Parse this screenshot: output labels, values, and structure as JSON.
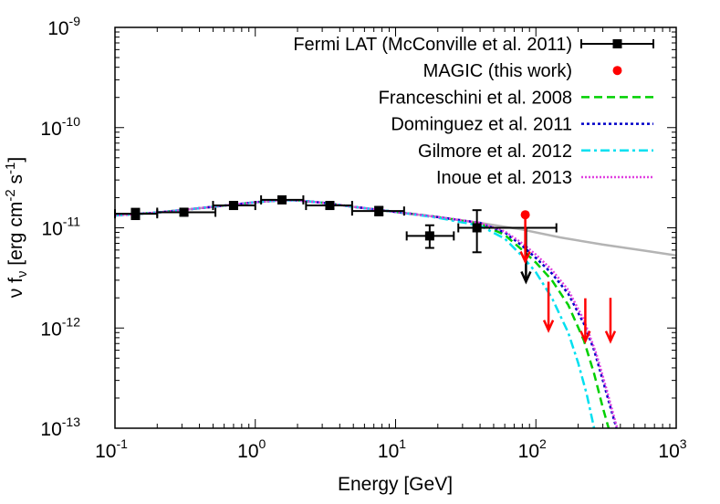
{
  "chart_data": {
    "type": "scatter",
    "xscale": "log",
    "yscale": "log",
    "xlim": [
      0.1,
      1000
    ],
    "ylim": [
      1e-13,
      1e-09
    ],
    "xlabel": "Energy [GeV]",
    "ylabel": {
      "base": "ν f",
      "sub": "ν",
      "unit_open": " [erg cm",
      "sup1": "-2",
      "unit_mid": " s",
      "sup2": "-1",
      "unit_close": "]"
    },
    "xticks": [
      {
        "base": "10",
        "exp": "-1",
        "value": 0.1
      },
      {
        "base": "10",
        "exp": "0",
        "value": 1
      },
      {
        "base": "10",
        "exp": "1",
        "value": 10
      },
      {
        "base": "10",
        "exp": "2",
        "value": 100
      },
      {
        "base": "10",
        "exp": "3",
        "value": 1000
      }
    ],
    "yticks": [
      {
        "base": "10",
        "exp": "-9",
        "value": 1e-09
      },
      {
        "base": "10",
        "exp": "-10",
        "value": 1e-10
      },
      {
        "base": "10",
        "exp": "-11",
        "value": 1e-11
      },
      {
        "base": "10",
        "exp": "-12",
        "value": 1e-12
      },
      {
        "base": "10",
        "exp": "-13",
        "value": 1e-13
      }
    ],
    "legend_position": "top-right",
    "series": [
      {
        "name": "Fermi LAT (McConville et al. 2011)",
        "kind": "points",
        "color": "#000000",
        "marker": "square",
        "points": [
          {
            "x": 0.14,
            "y": 1.38e-11,
            "xlo": 0.1,
            "xhi": 0.2,
            "ylo": 1.22e-11,
            "yhi": 1.55e-11
          },
          {
            "x": 0.31,
            "y": 1.43e-11,
            "xlo": 0.2,
            "xhi": 0.52,
            "ylo": 1.33e-11,
            "yhi": 1.55e-11
          },
          {
            "x": 0.7,
            "y": 1.67e-11,
            "xlo": 0.5,
            "xhi": 1.0,
            "ylo": 1.55e-11,
            "yhi": 1.8e-11
          },
          {
            "x": 1.55,
            "y": 1.9e-11,
            "xlo": 1.1,
            "xhi": 2.2,
            "ylo": 1.78e-11,
            "yhi": 2.05e-11
          },
          {
            "x": 3.4,
            "y": 1.67e-11,
            "xlo": 2.3,
            "xhi": 4.9,
            "ylo": 1.55e-11,
            "yhi": 1.8e-11
          },
          {
            "x": 7.6,
            "y": 1.47e-11,
            "xlo": 4.9,
            "xhi": 11.5,
            "ylo": 1.33e-11,
            "yhi": 1.62e-11
          },
          {
            "x": 17.5,
            "y": 8.3e-12,
            "xlo": 12,
            "xhi": 26,
            "ylo": 6.3e-12,
            "yhi": 1.06e-11
          },
          {
            "x": 38,
            "y": 1e-11,
            "xlo": 28,
            "xhi": 140,
            "ylo": 5.7e-12,
            "yhi": 1.5e-11
          }
        ],
        "upper_limits": [
          {
            "x": 85,
            "y": 1.02e-11,
            "y_arrow_end": 2.9e-12
          }
        ]
      },
      {
        "name": "MAGIC (this work)",
        "kind": "points",
        "color": "#ff0000",
        "marker": "circle",
        "points": [
          {
            "x": 84,
            "y": 1.35e-11
          }
        ],
        "upper_limits": [
          {
            "x": 84,
            "y": 1.35e-11,
            "y_arrow_end": 4.6e-12
          },
          {
            "x": 123,
            "y": 2.9e-12,
            "y_arrow_end": 9.5e-13
          },
          {
            "x": 225,
            "y": 1.98e-12,
            "y_arrow_end": 7.4e-13
          },
          {
            "x": 340,
            "y": 2e-12,
            "y_arrow_end": 7.4e-13
          }
        ]
      },
      {
        "name": "Franceschini et al. 2008",
        "kind": "line",
        "color": "#00d000",
        "dash": "9,5",
        "points": [
          [
            0.1,
            1.33e-11
          ],
          [
            0.2,
            1.42e-11
          ],
          [
            0.5,
            1.62e-11
          ],
          [
            1,
            1.8e-11
          ],
          [
            1.5,
            1.88e-11
          ],
          [
            2,
            1.88e-11
          ],
          [
            3,
            1.78e-11
          ],
          [
            5,
            1.62e-11
          ],
          [
            10,
            1.44e-11
          ],
          [
            20,
            1.28e-11
          ],
          [
            40,
            1.1e-11
          ],
          [
            60,
            8.5e-12
          ],
          [
            80,
            6e-12
          ],
          [
            100,
            4.5e-12
          ],
          [
            130,
            3e-12
          ],
          [
            170,
            1.7e-12
          ],
          [
            220,
            7.5e-13
          ],
          [
            260,
            3.5e-13
          ],
          [
            300,
            1.6e-13
          ],
          [
            330,
            1e-13
          ]
        ]
      },
      {
        "name": "Dominguez et al. 2011",
        "kind": "line",
        "color": "#0000c8",
        "dash": "3,3",
        "points": [
          [
            0.1,
            1.33e-11
          ],
          [
            0.2,
            1.42e-11
          ],
          [
            0.5,
            1.62e-11
          ],
          [
            1,
            1.8e-11
          ],
          [
            1.5,
            1.88e-11
          ],
          [
            2,
            1.88e-11
          ],
          [
            3,
            1.78e-11
          ],
          [
            5,
            1.62e-11
          ],
          [
            10,
            1.44e-11
          ],
          [
            20,
            1.28e-11
          ],
          [
            40,
            1.12e-11
          ],
          [
            60,
            9e-12
          ],
          [
            80,
            6.6e-12
          ],
          [
            100,
            5e-12
          ],
          [
            130,
            3.5e-12
          ],
          [
            170,
            2.2e-12
          ],
          [
            220,
            1.1e-12
          ],
          [
            260,
            6e-13
          ],
          [
            300,
            3e-13
          ],
          [
            350,
            1.4e-13
          ],
          [
            375,
            1e-13
          ]
        ]
      },
      {
        "name": "Gilmore et al. 2012",
        "kind": "line",
        "color": "#00e0f0",
        "dash": "10,4,3,4",
        "points": [
          [
            0.1,
            1.33e-11
          ],
          [
            0.2,
            1.42e-11
          ],
          [
            0.5,
            1.62e-11
          ],
          [
            1,
            1.8e-11
          ],
          [
            1.5,
            1.88e-11
          ],
          [
            2,
            1.88e-11
          ],
          [
            3,
            1.78e-11
          ],
          [
            5,
            1.62e-11
          ],
          [
            10,
            1.44e-11
          ],
          [
            20,
            1.26e-11
          ],
          [
            40,
            1.05e-11
          ],
          [
            60,
            7.8e-12
          ],
          [
            80,
            5.2e-12
          ],
          [
            100,
            3.6e-12
          ],
          [
            130,
            2e-12
          ],
          [
            170,
            9e-13
          ],
          [
            200,
            4.5e-13
          ],
          [
            230,
            2.2e-13
          ],
          [
            260,
            1e-13
          ]
        ]
      },
      {
        "name": "Inoue et al. 2013",
        "kind": "line",
        "color": "#e040e0",
        "dash": "2,2",
        "points": [
          [
            0.1,
            1.33e-11
          ],
          [
            0.2,
            1.42e-11
          ],
          [
            0.5,
            1.62e-11
          ],
          [
            1,
            1.8e-11
          ],
          [
            1.5,
            1.88e-11
          ],
          [
            2,
            1.88e-11
          ],
          [
            3,
            1.78e-11
          ],
          [
            5,
            1.62e-11
          ],
          [
            10,
            1.44e-11
          ],
          [
            20,
            1.28e-11
          ],
          [
            40,
            1.12e-11
          ],
          [
            60,
            9.2e-12
          ],
          [
            80,
            7e-12
          ],
          [
            100,
            5.4e-12
          ],
          [
            130,
            3.8e-12
          ],
          [
            170,
            2.4e-12
          ],
          [
            220,
            1.2e-12
          ],
          [
            270,
            5.5e-13
          ],
          [
            320,
            2.4e-13
          ],
          [
            360,
            1.3e-13
          ],
          [
            380,
            1e-13
          ]
        ]
      },
      {
        "name": "",
        "kind": "line",
        "color": "#b4b4b4",
        "dash": "",
        "points": [
          [
            0.1,
            1.33e-11
          ],
          [
            0.2,
            1.42e-11
          ],
          [
            0.5,
            1.62e-11
          ],
          [
            1,
            1.8e-11
          ],
          [
            1.5,
            1.88e-11
          ],
          [
            2,
            1.88e-11
          ],
          [
            3,
            1.78e-11
          ],
          [
            5,
            1.62e-11
          ],
          [
            10,
            1.44e-11
          ],
          [
            20,
            1.28e-11
          ],
          [
            40,
            1.12e-11
          ],
          [
            80,
            9.6e-12
          ],
          [
            150,
            8e-12
          ],
          [
            300,
            6.8e-12
          ],
          [
            600,
            5.9e-12
          ],
          [
            1000,
            5.3e-12
          ]
        ]
      }
    ]
  }
}
